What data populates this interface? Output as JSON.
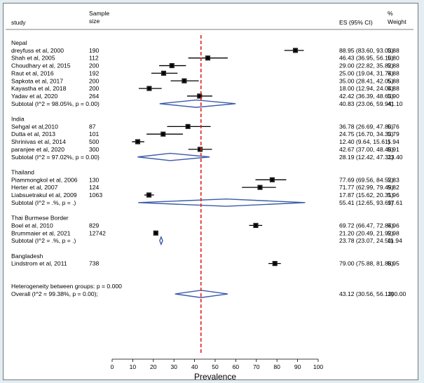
{
  "chart_data": {
    "type": "forest",
    "headers": {
      "study": "study",
      "sample_size": [
        "Sample",
        "size"
      ],
      "es": "ES (95% CI)",
      "weight": [
        "%",
        "Weight"
      ]
    },
    "xlabel": "Prevalence",
    "xlim": [
      0,
      100
    ],
    "xticks": [
      0,
      10,
      20,
      30,
      40,
      50,
      60,
      70,
      80,
      90,
      100
    ],
    "overall_line": 43.12,
    "colors": {
      "diamond": "#3a5ba8",
      "reference": "#e02020",
      "ci": "#000000",
      "box": "#000000"
    },
    "rows": [
      {
        "kind": "group",
        "label": "Nepal"
      },
      {
        "kind": "study",
        "label": "dreyfuss et al, 2000",
        "n": "190",
        "es": 88.95,
        "lo": 83.6,
        "hi": 93.03,
        "es_text": "88.95 (83.60, 93.03)",
        "weight": "5.88"
      },
      {
        "kind": "study",
        "label": "Shah et al, 2005",
        "n": "112",
        "es": 46.43,
        "lo": 36.95,
        "hi": 56.1,
        "es_text": "46.43 (36.95, 56.10)",
        "weight": "5.80"
      },
      {
        "kind": "study",
        "label": "Choudhary et al, 2015",
        "n": "200",
        "es": 29.0,
        "lo": 22.82,
        "hi": 35.82,
        "es_text": "29.00 (22.82, 35.82)",
        "weight": "5.88"
      },
      {
        "kind": "study",
        "label": "Raut et al, 2016",
        "n": "192",
        "es": 25.0,
        "lo": 19.04,
        "hi": 31.74,
        "es_text": "25.00 (19.04, 31.74)",
        "weight": "5.88"
      },
      {
        "kind": "study",
        "label": "Sapkota et al, 2017",
        "n": "200",
        "es": 35.0,
        "lo": 28.41,
        "hi": 42.05,
        "es_text": "35.00 (28.41, 42.05)",
        "weight": "5.88"
      },
      {
        "kind": "study",
        "label": "Kayastha et al, 2018",
        "n": "200",
        "es": 18.0,
        "lo": 12.94,
        "hi": 24.04,
        "es_text": "18.00 (12.94, 24.04)",
        "weight": "5.88"
      },
      {
        "kind": "study",
        "label": "Yadav et al, 2020",
        "n": "264",
        "es": 42.42,
        "lo": 36.39,
        "hi": 48.63,
        "es_text": "42.42 (36.39, 48.63)",
        "weight": "5.90"
      },
      {
        "kind": "subtotal",
        "label": "Subtotal  (I^2 = 98.05%, p = 0.00)",
        "es": 40.83,
        "lo": 23.06,
        "hi": 59.94,
        "es_text": "40.83 (23.06, 59.94)",
        "weight": "41.10"
      },
      {
        "kind": "blank"
      },
      {
        "kind": "group",
        "label": "India"
      },
      {
        "kind": "study",
        "label": "Sehgal et al,2010",
        "n": "87",
        "es": 36.78,
        "lo": 26.69,
        "hi": 47.8,
        "es_text": "36.78 (26.69, 47.80)",
        "weight": "5.76"
      },
      {
        "kind": "study",
        "label": "Dutta et al, 2013",
        "n": "101",
        "es": 24.75,
        "lo": 16.7,
        "hi": 34.33,
        "es_text": "24.75 (16.70, 34.33)",
        "weight": "5.79"
      },
      {
        "kind": "study",
        "label": "Shrinivas et al, 2014",
        "n": "500",
        "es": 12.4,
        "lo": 9.64,
        "hi": 15.61,
        "es_text": "12.40 (9.64, 15.61)",
        "weight": "5.94"
      },
      {
        "kind": "study",
        "label": "paranjee et al, 2020",
        "n": "300",
        "es": 42.67,
        "lo": 37.0,
        "hi": 48.48,
        "es_text": "42.67 (37.00, 48.48)",
        "weight": "5.91"
      },
      {
        "kind": "subtotal",
        "label": "Subtotal  (I^2 = 97.02%, p = 0.00)",
        "es": 28.19,
        "lo": 12.42,
        "hi": 47.31,
        "es_text": "28.19 (12.42, 47.31)",
        "weight": "23.40"
      },
      {
        "kind": "blank"
      },
      {
        "kind": "group",
        "label": "Thailand"
      },
      {
        "kind": "study",
        "label": "Piammongkol et al, 2006",
        "n": "130",
        "es": 77.69,
        "lo": 69.56,
        "hi": 84.52,
        "es_text": "77.69 (69.56, 84.52)",
        "weight": "5.83"
      },
      {
        "kind": "study",
        "label": "Herter et al, 2007",
        "n": "124",
        "es": 71.77,
        "lo": 62.99,
        "hi": 79.49,
        "es_text": "71.77 (62.99, 79.49)",
        "weight": "5.82"
      },
      {
        "kind": "study",
        "label": "Liabsuetrakul et al, 2009",
        "n": "1063",
        "es": 17.87,
        "lo": 15.62,
        "hi": 20.31,
        "es_text": "17.87 (15.62, 20.31)",
        "weight": "5.96"
      },
      {
        "kind": "subtotal",
        "label": "Subtotal  (I^2 = .%, p = .)",
        "es": 55.41,
        "lo": 12.65,
        "hi": 93.69,
        "es_text": "55.41 (12.65, 93.69)",
        "weight": "17.61"
      },
      {
        "kind": "blank"
      },
      {
        "kind": "group",
        "label": "Thai Burmese Border"
      },
      {
        "kind": "study",
        "label": "Boel et al, 2010",
        "n": "829",
        "es": 69.72,
        "lo": 66.47,
        "hi": 72.84,
        "es_text": "69.72 (66.47, 72.84)",
        "weight": "5.96"
      },
      {
        "kind": "study",
        "label": "Brummaier et al, 2021",
        "n": "12742",
        "es": 21.2,
        "lo": 20.49,
        "hi": 21.92,
        "es_text": "21.20 (20.49, 21.92)",
        "weight": "5.98"
      },
      {
        "kind": "subtotal",
        "label": "Subtotal  (I^2 = .%, p = .)",
        "es": 23.78,
        "lo": 23.07,
        "hi": 24.5,
        "es_text": "23.78 (23.07, 24.50)",
        "weight": "11.94"
      },
      {
        "kind": "blank"
      },
      {
        "kind": "group",
        "label": "Bangladesh"
      },
      {
        "kind": "study",
        "label": "Lindstrom et al, 2011",
        "n": "738",
        "es": 79.0,
        "lo": 75.88,
        "hi": 81.88,
        "es_text": "79.00 (75.88, 81.88)",
        "weight": "5.95"
      },
      {
        "kind": "blank"
      },
      {
        "kind": "blank"
      },
      {
        "kind": "text",
        "label": "Heterogeneity between groups: p = 0.000"
      },
      {
        "kind": "overall",
        "label": "Overall  (I^2 = 99.38%, p = 0.00);",
        "es": 43.12,
        "lo": 30.56,
        "hi": 56.13,
        "es_text": "43.12 (30.56, 56.13)",
        "weight": "100.00"
      }
    ]
  }
}
